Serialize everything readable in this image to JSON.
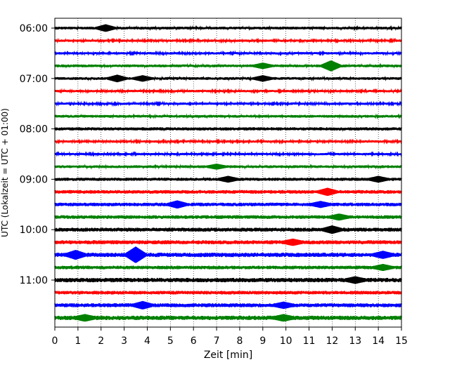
{
  "chart_data": {
    "type": "line",
    "title": "",
    "xlabel": "Zeit  [min]",
    "ylabel": "UTC (Lokalzeit = UTC + 01:00)",
    "xlim": [
      0,
      15
    ],
    "x_ticks": [
      "0",
      "1",
      "2",
      "3",
      "4",
      "5",
      "6",
      "7",
      "8",
      "9",
      "10",
      "11",
      "12",
      "13",
      "14",
      "15"
    ],
    "y_ticks": [
      "06:00",
      "07:00",
      "08:00",
      "09:00",
      "10:00",
      "11:00"
    ],
    "grid": "vertical dotted",
    "traces": [
      {
        "time": "06:00",
        "color": "#000000",
        "amplitude": 0.35,
        "events": [
          {
            "x": 2.2,
            "amp": 1.0
          }
        ]
      },
      {
        "time": "06:15",
        "color": "#ff0000",
        "amplitude": 0.3,
        "events": []
      },
      {
        "time": "06:30",
        "color": "#0000ff",
        "amplitude": 0.3,
        "events": []
      },
      {
        "time": "06:45",
        "color": "#008000",
        "amplitude": 0.35,
        "events": [
          {
            "x": 9.0,
            "amp": 0.8
          },
          {
            "x": 11.95,
            "amp": 1.6
          }
        ]
      },
      {
        "time": "07:00",
        "color": "#000000",
        "amplitude": 0.35,
        "events": [
          {
            "x": 2.7,
            "amp": 1.0
          },
          {
            "x": 3.8,
            "amp": 0.8
          },
          {
            "x": 9.0,
            "amp": 0.8
          }
        ]
      },
      {
        "time": "07:15",
        "color": "#ff0000",
        "amplitude": 0.3,
        "events": []
      },
      {
        "time": "07:30",
        "color": "#0000ff",
        "amplitude": 0.3,
        "events": []
      },
      {
        "time": "07:45",
        "color": "#008000",
        "amplitude": 0.35,
        "events": []
      },
      {
        "time": "08:00",
        "color": "#000000",
        "amplitude": 0.4,
        "events": []
      },
      {
        "time": "08:15",
        "color": "#ff0000",
        "amplitude": 0.3,
        "events": []
      },
      {
        "time": "08:30",
        "color": "#0000ff",
        "amplitude": 0.3,
        "events": []
      },
      {
        "time": "08:45",
        "color": "#008000",
        "amplitude": 0.35,
        "events": [
          {
            "x": 7.0,
            "amp": 0.7
          }
        ]
      },
      {
        "time": "09:00",
        "color": "#000000",
        "amplitude": 0.4,
        "events": [
          {
            "x": 7.5,
            "amp": 0.8
          },
          {
            "x": 14.0,
            "amp": 0.8
          }
        ]
      },
      {
        "time": "09:15",
        "color": "#ff0000",
        "amplitude": 0.45,
        "events": [
          {
            "x": 11.8,
            "amp": 1.0
          }
        ]
      },
      {
        "time": "09:30",
        "color": "#0000ff",
        "amplitude": 0.45,
        "events": [
          {
            "x": 5.3,
            "amp": 1.0
          },
          {
            "x": 11.5,
            "amp": 0.8
          }
        ]
      },
      {
        "time": "09:45",
        "color": "#008000",
        "amplitude": 0.45,
        "events": [
          {
            "x": 12.3,
            "amp": 0.8
          }
        ]
      },
      {
        "time": "10:00",
        "color": "#000000",
        "amplitude": 0.5,
        "events": [
          {
            "x": 12.0,
            "amp": 1.0
          }
        ]
      },
      {
        "time": "10:15",
        "color": "#ff0000",
        "amplitude": 0.5,
        "events": [
          {
            "x": 10.3,
            "amp": 0.8
          }
        ]
      },
      {
        "time": "10:30",
        "color": "#0000ff",
        "amplitude": 0.55,
        "events": [
          {
            "x": 3.5,
            "amp": 2.4
          },
          {
            "x": 0.9,
            "amp": 1.2
          },
          {
            "x": 14.2,
            "amp": 0.9
          }
        ]
      },
      {
        "time": "10:45",
        "color": "#008000",
        "amplitude": 0.45,
        "events": [
          {
            "x": 14.2,
            "amp": 0.8
          }
        ]
      },
      {
        "time": "11:00",
        "color": "#000000",
        "amplitude": 0.55,
        "events": [
          {
            "x": 13.0,
            "amp": 0.8
          }
        ]
      },
      {
        "time": "11:15",
        "color": "#ff0000",
        "amplitude": 0.45,
        "events": []
      },
      {
        "time": "11:30",
        "color": "#0000ff",
        "amplitude": 0.5,
        "events": [
          {
            "x": 3.8,
            "amp": 1.0
          },
          {
            "x": 9.9,
            "amp": 0.8
          }
        ]
      },
      {
        "time": "11:45",
        "color": "#008000",
        "amplitude": 0.55,
        "events": [
          {
            "x": 1.3,
            "amp": 0.8
          },
          {
            "x": 9.9,
            "amp": 0.8
          }
        ]
      }
    ]
  }
}
